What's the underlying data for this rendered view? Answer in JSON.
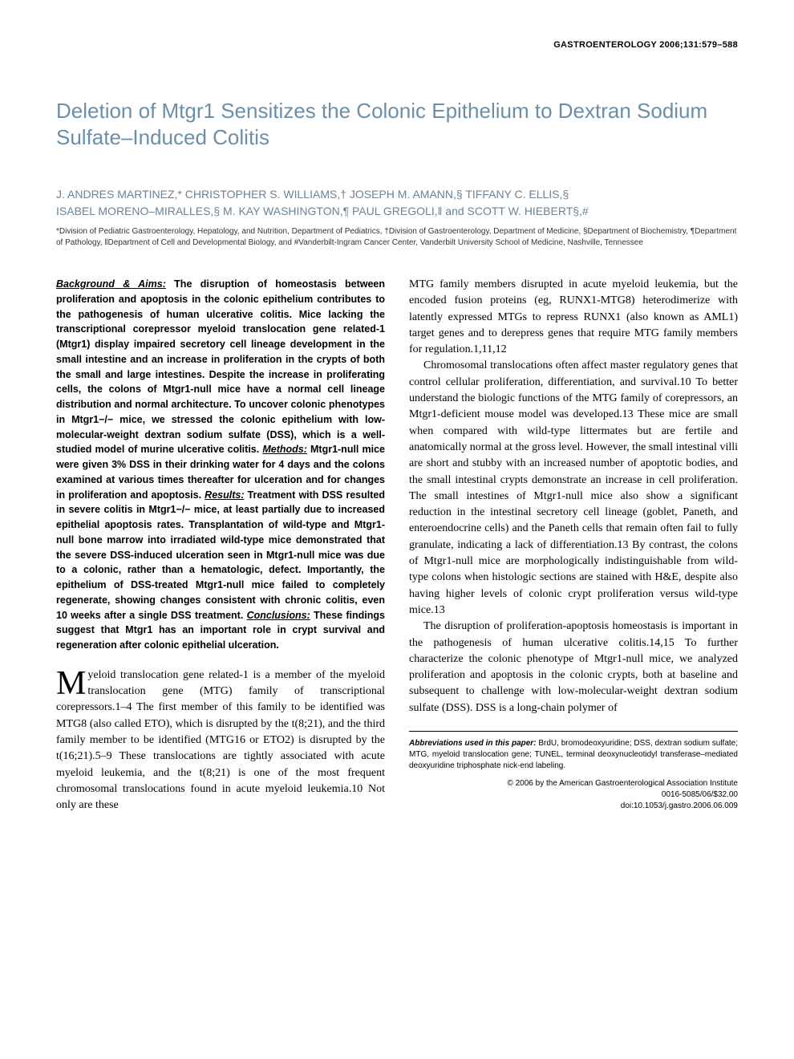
{
  "journal_header": "GASTROENTEROLOGY 2006;131:579–588",
  "title": "Deletion of Mtgr1 Sensitizes the Colonic Epithelium to Dextran Sodium Sulfate–Induced Colitis",
  "authors_line1": "J. ANDRES MARTINEZ,* CHRISTOPHER S. WILLIAMS,† JOSEPH M. AMANN,§ TIFFANY C. ELLIS,§",
  "authors_line2": "ISABEL MORENO–MIRALLES,§ M. KAY WASHINGTON,¶ PAUL GREGOLI,‖ and SCOTT W. HIEBERT§,#",
  "affiliations": "*Division of Pediatric Gastroenterology, Hepatology, and Nutrition, Department of Pediatrics, †Division of Gastroenterology, Department of Medicine, §Department of Biochemistry, ¶Department of Pathology, ‖Department of Cell and Developmental Biology, and #Vanderbilt-Ingram Cancer Center, Vanderbilt University School of Medicine, Nashville, Tennessee",
  "abstract": {
    "bg_label": "Background & Aims:",
    "bg_text": " The disruption of homeostasis between proliferation and apoptosis in the colonic epithelium contributes to the pathogenesis of human ulcerative colitis. Mice lacking the transcriptional corepressor myeloid translocation gene related-1 (Mtgr1) display impaired secretory cell lineage development in the small intestine and an increase in proliferation in the crypts of both the small and large intestines. Despite the increase in proliferating cells, the colons of Mtgr1-null mice have a normal cell lineage distribution and normal architecture. To uncover colonic phenotypes in Mtgr1−/− mice, we stressed the colonic epithelium with low-molecular-weight dextran sodium sulfate (DSS), which is a well-studied model of murine ulcerative colitis. ",
    "methods_label": "Methods:",
    "methods_text": " Mtgr1-null mice were given 3% DSS in their drinking water for 4 days and the colons examined at various times thereafter for ulceration and for changes in proliferation and apoptosis. ",
    "results_label": "Results:",
    "results_text": " Treatment with DSS resulted in severe colitis in Mtgr1−/− mice, at least partially due to increased epithelial apoptosis rates. Transplantation of wild-type and Mtgr1-null bone marrow into irradiated wild-type mice demonstrated that the severe DSS-induced ulceration seen in Mtgr1-null mice was due to a colonic, rather than a hematologic, defect. Importantly, the epithelium of DSS-treated Mtgr1-null mice failed to completely regenerate, showing changes consistent with chronic colitis, even 10 weeks after a single DSS treatment. ",
    "conclusions_label": "Conclusions:",
    "conclusions_text": " These findings suggest that Mtgr1 has an important role in crypt survival and regeneration after colonic epithelial ulceration."
  },
  "body": {
    "p1_drop": "M",
    "p1": "yeloid translocation gene related-1 is a member of the myeloid translocation gene (MTG) family of transcriptional corepressors.1–4 The first member of this family to be identified was MTG8 (also called ETO), which is disrupted by the t(8;21), and the third family member to be identified (MTG16 or ETO2) is disrupted by the t(16;21).5–9 These translocations are tightly associated with acute myeloid leukemia, and the t(8;21) is one of the most frequent chromosomal translocations found in acute myeloid leukemia.10 Not only are these",
    "p2": "MTG family members disrupted in acute myeloid leukemia, but the encoded fusion proteins (eg, RUNX1-MTG8) heterodimerize with latently expressed MTGs to repress RUNX1 (also known as AML1) target genes and to derepress genes that require MTG family members for regulation.1,11,12",
    "p3": "Chromosomal translocations often affect master regulatory genes that control cellular proliferation, differentiation, and survival.10 To better understand the biologic functions of the MTG family of corepressors, an Mtgr1-deficient mouse model was developed.13 These mice are small when compared with wild-type littermates but are fertile and anatomically normal at the gross level. However, the small intestinal villi are short and stubby with an increased number of apoptotic bodies, and the small intestinal crypts demonstrate an increase in cell proliferation. The small intestines of Mtgr1-null mice also show a significant reduction in the intestinal secretory cell lineage (goblet, Paneth, and enteroendocrine cells) and the Paneth cells that remain often fail to fully granulate, indicating a lack of differentiation.13 By contrast, the colons of Mtgr1-null mice are morphologically indistinguishable from wild-type colons when histologic sections are stained with H&E, despite also having higher levels of colonic crypt proliferation versus wild-type mice.13",
    "p4": "The disruption of proliferation-apoptosis homeostasis is important in the pathogenesis of human ulcerative colitis.14,15 To further characterize the colonic phenotype of Mtgr1-null mice, we analyzed proliferation and apoptosis in the colonic crypts, both at baseline and subsequent to challenge with low-molecular-weight dextran sodium sulfate (DSS). DSS is a long-chain polymer of"
  },
  "footer": {
    "abbrev_label": "Abbreviations used in this paper:",
    "abbrev_text": " BrdU, bromodeoxyuridine; DSS, dextran sodium sulfate; MTG, myeloid translocation gene; TUNEL, terminal deoxynucleotidyl transferase–mediated deoxyuridine triphosphate nick-end labeling.",
    "copyright_line1": "© 2006 by the American Gastroenterological Association Institute",
    "copyright_line2": "0016-5085/06/$32.00",
    "copyright_line3": "doi:10.1053/j.gastro.2006.06.009"
  },
  "colors": {
    "title_color": "#6b8fa8",
    "authors_color": "#6b8297",
    "text_color": "#000000",
    "background": "#ffffff"
  },
  "typography": {
    "title_fontsize": 26,
    "authors_fontsize": 14,
    "affiliations_fontsize": 10,
    "abstract_fontsize": 12.5,
    "body_fontsize": 14,
    "footer_fontsize": 10
  }
}
